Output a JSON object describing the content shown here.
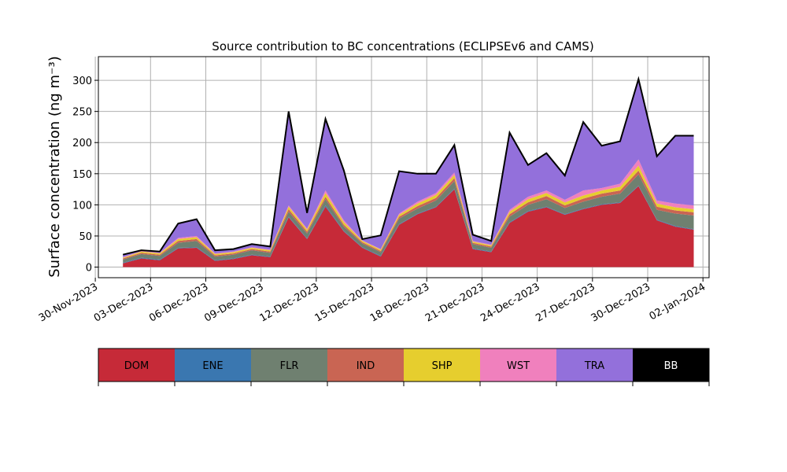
{
  "chart_data": {
    "type": "area",
    "title": "Source contribution to BC concentrations (ECLIPSEv6 and CAMS)",
    "ylabel": "Surface concentration (ng m⁻³)",
    "xlabel": "",
    "ylim": [
      -17,
      338
    ],
    "xlim": [
      "2023-11-30T04:00",
      "2024-01-02T08:00"
    ],
    "xtick_labels": [
      "30-Nov-2023",
      "03-Dec-2023",
      "06-Dec-2023",
      "09-Dec-2023",
      "12-Dec-2023",
      "15-Dec-2023",
      "18-Dec-2023",
      "21-Dec-2023",
      "24-Dec-2023",
      "27-Dec-2023",
      "30-Dec-2023",
      "02-Jan-2024"
    ],
    "ytick_labels": [
      "0",
      "50",
      "100",
      "150",
      "200",
      "250",
      "300"
    ],
    "grid": true,
    "legend": "colorbar below plot",
    "x": [
      "2023-12-01",
      "2023-12-02",
      "2023-12-03",
      "2023-12-04",
      "2023-12-05",
      "2023-12-06",
      "2023-12-07",
      "2023-12-08",
      "2023-12-09",
      "2023-12-10",
      "2023-12-11",
      "2023-12-12",
      "2023-12-13",
      "2023-12-14",
      "2023-12-15",
      "2023-12-16",
      "2023-12-17",
      "2023-12-18",
      "2023-12-19",
      "2023-12-20",
      "2023-12-21",
      "2023-12-22",
      "2023-12-23",
      "2023-12-24",
      "2023-12-25",
      "2023-12-26",
      "2023-12-27",
      "2023-12-28",
      "2023-12-29",
      "2023-12-30",
      "2023-12-31",
      "2024-01-01"
    ],
    "series": [
      {
        "name": "DOM",
        "color": "#c62a38",
        "values": [
          6,
          14,
          11,
          30,
          31,
          10,
          13,
          19,
          16,
          80,
          45,
          97,
          57,
          31,
          17,
          68,
          85,
          96,
          125,
          29,
          24,
          71,
          89,
          96,
          84,
          93,
          100,
          103,
          130,
          75,
          65,
          60
        ]
      },
      {
        "name": "ENE",
        "color": "#3a77b0",
        "values": [
          1,
          1,
          1,
          1,
          1,
          1,
          1,
          1,
          1,
          1,
          1,
          2,
          1,
          1,
          1,
          1,
          1,
          1,
          1,
          1,
          1,
          1,
          1,
          1,
          1,
          1,
          1,
          1,
          1,
          1,
          1,
          1
        ]
      },
      {
        "name": "FLR",
        "color": "#6f8070",
        "values": [
          5,
          6,
          6,
          8,
          10,
          6,
          6,
          7,
          6,
          8,
          8,
          10,
          7,
          6,
          6,
          9,
          8,
          10,
          12,
          7,
          6,
          9,
          10,
          12,
          10,
          11,
          12,
          14,
          18,
          16,
          20,
          22
        ]
      },
      {
        "name": "IND",
        "color": "#c96553",
        "values": [
          2,
          2,
          2,
          3,
          3,
          2,
          2,
          2,
          2,
          4,
          3,
          4,
          3,
          2,
          2,
          3,
          4,
          4,
          5,
          2,
          2,
          4,
          4,
          5,
          4,
          5,
          5,
          5,
          6,
          5,
          5,
          5
        ]
      },
      {
        "name": "SHP",
        "color": "#e6ce2e",
        "values": [
          1,
          2,
          2,
          3,
          3,
          2,
          2,
          2,
          2,
          4,
          3,
          6,
          4,
          2,
          2,
          3,
          4,
          5,
          5,
          2,
          2,
          4,
          5,
          5,
          5,
          5,
          5,
          6,
          8,
          5,
          5,
          5
        ]
      },
      {
        "name": "WST",
        "color": "#f080bd",
        "values": [
          1,
          1,
          1,
          2,
          2,
          1,
          1,
          1,
          1,
          2,
          2,
          4,
          3,
          1,
          1,
          2,
          3,
          3,
          4,
          1,
          1,
          3,
          4,
          4,
          4,
          8,
          4,
          5,
          10,
          5,
          6,
          6
        ]
      },
      {
        "name": "TRA",
        "color": "#9370db",
        "values": [
          4,
          1,
          2,
          23,
          27,
          5,
          4,
          5,
          5,
          151,
          25,
          115,
          80,
          2,
          22,
          68,
          45,
          31,
          44,
          10,
          6,
          124,
          51,
          60,
          39,
          110,
          68,
          68,
          130,
          71,
          109,
          112
        ]
      },
      {
        "name": "BB",
        "color": "#000000",
        "values": [
          0,
          0,
          0,
          0,
          0,
          0,
          0,
          0,
          0,
          0,
          0,
          0,
          0,
          0,
          0,
          0,
          0,
          0,
          0,
          0,
          0,
          0,
          0,
          0,
          0,
          0,
          0,
          0,
          0,
          0,
          0,
          0
        ]
      }
    ],
    "total": [
      20,
      27,
      25,
      70,
      77,
      27,
      29,
      37,
      33,
      250,
      87,
      238,
      155,
      45,
      51,
      154,
      150,
      150,
      196,
      52,
      42,
      216,
      164,
      183,
      147,
      233,
      195,
      202,
      302,
      178,
      211,
      211
    ]
  }
}
